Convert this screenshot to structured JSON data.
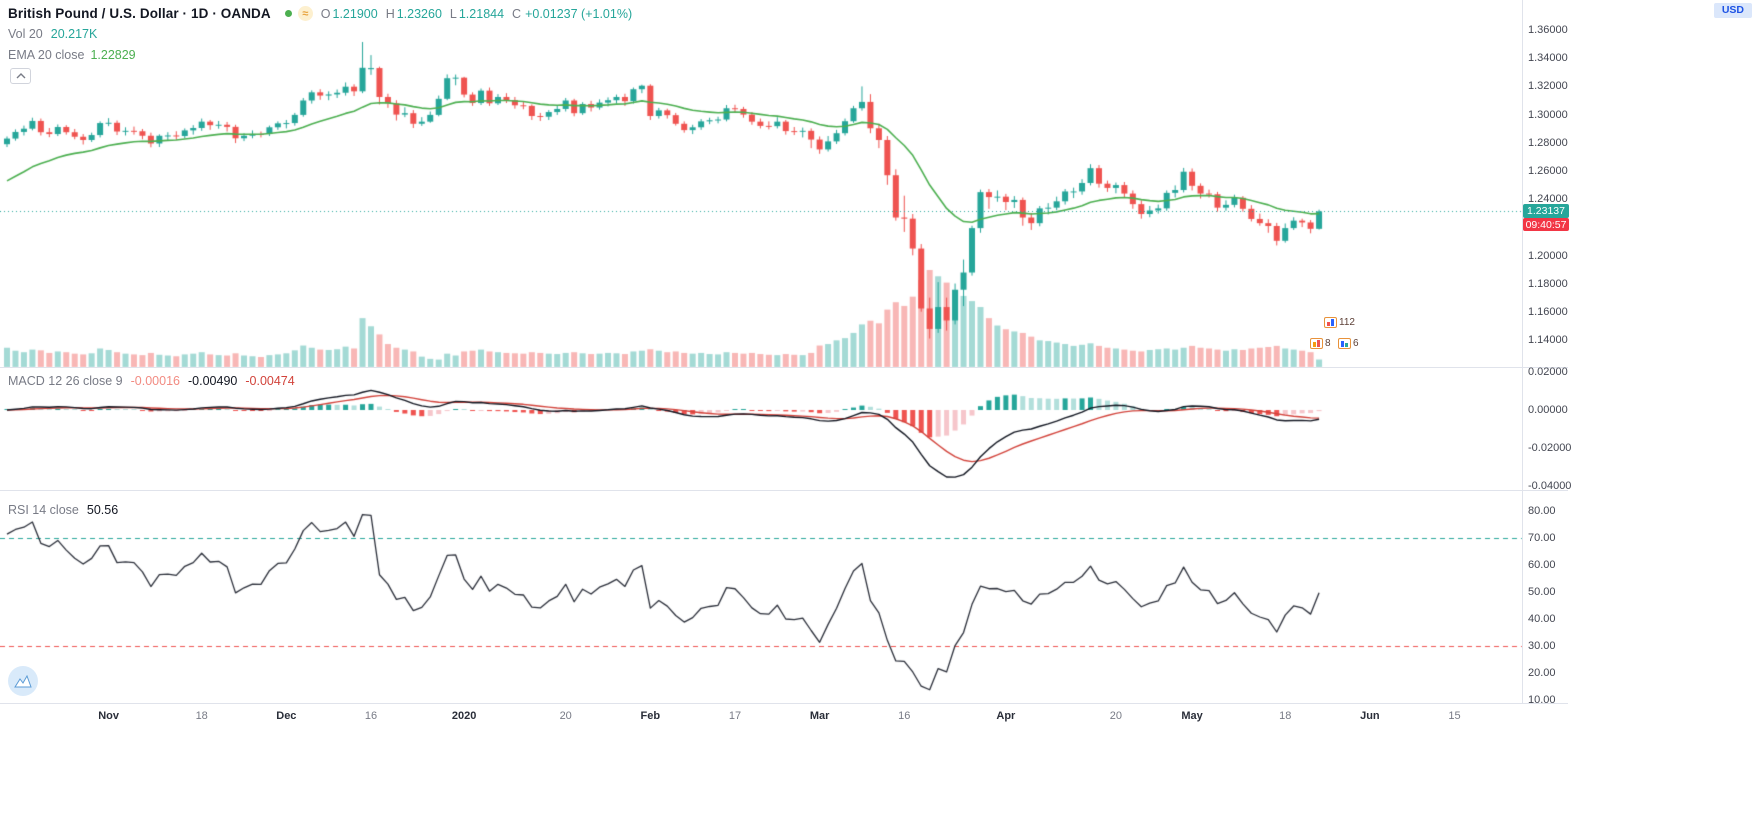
{
  "header": {
    "symbol_title": "British Pound / U.S. Dollar · 1D · OANDA",
    "delayed_icon": "≈",
    "ohlc": {
      "o_label": "O",
      "o_value": "1.21900",
      "h_label": "H",
      "h_value": "1.23260",
      "l_label": "L",
      "l_value": "1.21844",
      "c_label": "C",
      "c_value": "1.23137",
      "change_value": "+0.01237 (+1.01%)"
    },
    "vol_label": "Vol 20",
    "vol_value": "20.217K",
    "ema_label": "EMA 20 close",
    "ema_value": "1.22829"
  },
  "price_axis": {
    "currency": "USD",
    "labels": [
      "1.36000",
      "1.34000",
      "1.32000",
      "1.30000",
      "1.28000",
      "1.26000",
      "1.24000",
      "1.20000",
      "1.18000",
      "1.16000",
      "1.14000"
    ],
    "last_price": "1.23137",
    "countdown": "09:40:57"
  },
  "macd": {
    "legend_label": "MACD 12 26 close 9",
    "hist_value": "-0.00016",
    "macd_value": "-0.00490",
    "signal_value": "-0.00474",
    "axis_labels": [
      "0.02000",
      "0.00000",
      "-0.02000",
      "-0.04000"
    ]
  },
  "rsi": {
    "legend_label": "RSI 14 close",
    "value": "50.56",
    "axis_labels": [
      "80.00",
      "70.00",
      "60.00",
      "50.00",
      "40.00",
      "30.00",
      "20.00",
      "10.00"
    ]
  },
  "time_axis": {
    "labels": [
      {
        "text": "Nov",
        "index": 12,
        "major": true
      },
      {
        "text": "18",
        "index": 23,
        "major": false
      },
      {
        "text": "Dec",
        "index": 33,
        "major": true
      },
      {
        "text": "16",
        "index": 43,
        "major": false
      },
      {
        "text": "2020",
        "index": 54,
        "major": true
      },
      {
        "text": "20",
        "index": 66,
        "major": false
      },
      {
        "text": "Feb",
        "index": 76,
        "major": true
      },
      {
        "text": "17",
        "index": 86,
        "major": false
      },
      {
        "text": "Mar",
        "index": 96,
        "major": true
      },
      {
        "text": "16",
        "index": 106,
        "major": false
      },
      {
        "text": "Apr",
        "index": 118,
        "major": true
      },
      {
        "text": "20",
        "index": 131,
        "major": false
      },
      {
        "text": "May",
        "index": 140,
        "major": true
      },
      {
        "text": "18",
        "index": 151,
        "major": false
      },
      {
        "text": "Jun",
        "index": 161,
        "major": true
      },
      {
        "text": "15",
        "index": 171,
        "major": false
      }
    ]
  },
  "markers": {
    "items": [
      {
        "count": "112"
      },
      {
        "count": "8"
      },
      {
        "count": "6"
      }
    ]
  },
  "colors": {
    "up": "#26a69a",
    "down": "#ef5350",
    "volume_up": "rgba(38,166,154,0.42)",
    "volume_down": "rgba(239,83,80,0.42)",
    "ema": "#4caf50",
    "price_line": "#26a69a",
    "macd_line": "#131722",
    "signal_line": "#d2433b",
    "hist_up_grow": "#26a69a",
    "hist_up_fall": "#b2dfdb",
    "hist_dn_fall": "#ef5350",
    "hist_dn_rise": "#f6c6cb",
    "rsi_line": "#2a2e39",
    "rsi_upper": "#26a69a",
    "rsi_lower": "#ef5350",
    "badge_price_bg": "#26a69a",
    "badge_countdown_bg": "#f23645"
  },
  "chart_data": {
    "type": "candlestick",
    "symbol": "GBP/USD",
    "timeframe": "1D",
    "exchange": "OANDA",
    "date_range": {
      "start": "2019-10-16",
      "end": "2020-05-22",
      "frequency": "trading_days"
    },
    "price_axis_visible_range": [
      1.121,
      1.381
    ],
    "last_price": 1.23137,
    "candles_ohlc": [
      [
        1.279,
        1.2845,
        1.277,
        1.283
      ],
      [
        1.283,
        1.2895,
        1.2815,
        1.2877
      ],
      [
        1.2877,
        1.2922,
        1.2852,
        1.29
      ],
      [
        1.29,
        1.2978,
        1.2888,
        1.2955
      ],
      [
        1.2955,
        1.2972,
        1.2852,
        1.2875
      ],
      [
        1.2875,
        1.2905,
        1.284,
        1.2862
      ],
      [
        1.2862,
        1.293,
        1.2848,
        1.2912
      ],
      [
        1.2912,
        1.2925,
        1.2858,
        1.2875
      ],
      [
        1.2875,
        1.2898,
        1.2825,
        1.2843
      ],
      [
        1.2843,
        1.2862,
        1.2788,
        1.282
      ],
      [
        1.282,
        1.2872,
        1.2806,
        1.2855
      ],
      [
        1.2855,
        1.2952,
        1.2838,
        1.294
      ],
      [
        1.294,
        1.2975,
        1.2918,
        1.2942
      ],
      [
        1.2942,
        1.2958,
        1.2855,
        1.288
      ],
      [
        1.288,
        1.291,
        1.2852,
        1.2885
      ],
      [
        1.2885,
        1.2915,
        1.2858,
        1.2882
      ],
      [
        1.2882,
        1.2898,
        1.2825,
        1.285
      ],
      [
        1.285,
        1.2872,
        1.2768,
        1.2795
      ],
      [
        1.2795,
        1.286,
        1.277,
        1.285
      ],
      [
        1.285,
        1.2875,
        1.282,
        1.2852
      ],
      [
        1.2852,
        1.2882,
        1.2822,
        1.2848
      ],
      [
        1.2848,
        1.2902,
        1.2832,
        1.2888
      ],
      [
        1.2888,
        1.2925,
        1.2858,
        1.2905
      ],
      [
        1.2905,
        1.2972,
        1.2885,
        1.295
      ],
      [
        1.295,
        1.2962,
        1.2892,
        1.2925
      ],
      [
        1.2925,
        1.2955,
        1.29,
        1.2928
      ],
      [
        1.2928,
        1.2948,
        1.288,
        1.2913
      ],
      [
        1.2913,
        1.2928,
        1.2798,
        1.2832
      ],
      [
        1.2832,
        1.2868,
        1.2812,
        1.285
      ],
      [
        1.285,
        1.2888,
        1.2832,
        1.2863
      ],
      [
        1.2863,
        1.288,
        1.2838,
        1.2862
      ],
      [
        1.2862,
        1.2922,
        1.2848,
        1.291
      ],
      [
        1.291,
        1.2952,
        1.2892,
        1.2938
      ],
      [
        1.2938,
        1.2962,
        1.2902,
        1.294
      ],
      [
        1.294,
        1.3012,
        1.2922,
        1.2998
      ],
      [
        1.2998,
        1.3118,
        1.2985,
        1.31
      ],
      [
        1.31,
        1.3172,
        1.3078,
        1.3158
      ],
      [
        1.3158,
        1.318,
        1.3105,
        1.3135
      ],
      [
        1.3135,
        1.3165,
        1.3102,
        1.3143
      ],
      [
        1.3143,
        1.3178,
        1.3118,
        1.3155
      ],
      [
        1.3155,
        1.3228,
        1.3135,
        1.3198
      ],
      [
        1.3198,
        1.3215,
        1.3132,
        1.3165
      ],
      [
        1.3165,
        1.3515,
        1.3152,
        1.3332
      ],
      [
        1.3322,
        1.3422,
        1.3282,
        1.333
      ],
      [
        1.333,
        1.334,
        1.3072,
        1.3125
      ],
      [
        1.3125,
        1.3148,
        1.3048,
        1.308
      ],
      [
        1.308,
        1.3102,
        1.2958,
        1.3
      ],
      [
        1.3,
        1.3052,
        1.2982,
        1.301
      ],
      [
        1.301,
        1.3032,
        1.2905,
        1.2935
      ],
      [
        1.2935,
        1.2982,
        1.292,
        1.295
      ],
      [
        1.295,
        1.3022,
        1.2942,
        1.2998
      ],
      [
        1.2998,
        1.3135,
        1.2988,
        1.3112
      ],
      [
        1.3112,
        1.3285,
        1.3102,
        1.3258
      ],
      [
        1.3258,
        1.3284,
        1.3208,
        1.3262
      ],
      [
        1.3262,
        1.3268,
        1.3122,
        1.3142
      ],
      [
        1.3142,
        1.3158,
        1.3062,
        1.3082
      ],
      [
        1.3082,
        1.3185,
        1.3068,
        1.317
      ],
      [
        1.317,
        1.3192,
        1.3062,
        1.308
      ],
      [
        1.308,
        1.3145,
        1.3068,
        1.3125
      ],
      [
        1.3125,
        1.3152,
        1.3082,
        1.3103
      ],
      [
        1.3103,
        1.3125,
        1.3042,
        1.3066
      ],
      [
        1.3066,
        1.3092,
        1.3038,
        1.3062
      ],
      [
        1.3062,
        1.3072,
        1.2962,
        1.299
      ],
      [
        1.299,
        1.3012,
        1.2955,
        1.2985
      ],
      [
        1.2985,
        1.3032,
        1.2962,
        1.3018
      ],
      [
        1.3018,
        1.3062,
        1.2998,
        1.304
      ],
      [
        1.304,
        1.3118,
        1.3022,
        1.31
      ],
      [
        1.31,
        1.3112,
        1.2988,
        1.301
      ],
      [
        1.301,
        1.3088,
        1.2998,
        1.3075
      ],
      [
        1.3075,
        1.3098,
        1.3022,
        1.305
      ],
      [
        1.305,
        1.3108,
        1.3035,
        1.3085
      ],
      [
        1.3085,
        1.3122,
        1.3058,
        1.3102
      ],
      [
        1.3102,
        1.3142,
        1.3078,
        1.3125
      ],
      [
        1.3125,
        1.3148,
        1.3062,
        1.3095
      ],
      [
        1.3095,
        1.3192,
        1.3078,
        1.318
      ],
      [
        1.318,
        1.3212,
        1.3152,
        1.3205
      ],
      [
        1.3205,
        1.3215,
        1.2962,
        1.299
      ],
      [
        1.299,
        1.3048,
        1.2972,
        1.303
      ],
      [
        1.303,
        1.3042,
        1.2972,
        1.2996
      ],
      [
        1.2996,
        1.3012,
        1.2922,
        1.2935
      ],
      [
        1.2935,
        1.2952,
        1.2872,
        1.289
      ],
      [
        1.289,
        1.2928,
        1.2862,
        1.291
      ],
      [
        1.291,
        1.2968,
        1.2892,
        1.2952
      ],
      [
        1.2952,
        1.2978,
        1.2932,
        1.296
      ],
      [
        1.296,
        1.2985,
        1.2938,
        1.2965
      ],
      [
        1.2965,
        1.3068,
        1.2952,
        1.3045
      ],
      [
        1.3045,
        1.307,
        1.3012,
        1.304
      ],
      [
        1.304,
        1.3055,
        1.2978,
        1.3
      ],
      [
        1.3,
        1.3018,
        1.2928,
        1.295
      ],
      [
        1.295,
        1.2972,
        1.2902,
        1.292
      ],
      [
        1.292,
        1.2952,
        1.2895,
        1.2918
      ],
      [
        1.2918,
        1.2982,
        1.2902,
        1.295
      ],
      [
        1.295,
        1.2962,
        1.2858,
        1.2883
      ],
      [
        1.2883,
        1.2912,
        1.2855,
        1.288
      ],
      [
        1.288,
        1.2908,
        1.2838,
        1.2885
      ],
      [
        1.2885,
        1.2902,
        1.2762,
        1.2823
      ],
      [
        1.2823,
        1.2845,
        1.2722,
        1.2753
      ],
      [
        1.2753,
        1.2848,
        1.2738,
        1.281
      ],
      [
        1.281,
        1.2892,
        1.2792,
        1.2868
      ],
      [
        1.2868,
        1.2972,
        1.2852,
        1.2953
      ],
      [
        1.2953,
        1.3062,
        1.2942,
        1.3045
      ],
      [
        1.3045,
        1.32,
        1.3028,
        1.309
      ],
      [
        1.309,
        1.3145,
        1.2868,
        1.2903
      ],
      [
        1.2903,
        1.2935,
        1.2762,
        1.282
      ],
      [
        1.282,
        1.2848,
        1.2502,
        1.257
      ],
      [
        1.257,
        1.2612,
        1.2248,
        1.227
      ],
      [
        1.227,
        1.2425,
        1.2168,
        1.2262
      ],
      [
        1.2262,
        1.2295,
        1.2002,
        1.205
      ],
      [
        1.205,
        1.2082,
        1.1602,
        1.1625
      ],
      [
        1.1625,
        1.1702,
        1.1412,
        1.148
      ],
      [
        1.148,
        1.1812,
        1.1452,
        1.1635
      ],
      [
        1.1635,
        1.1702,
        1.1468,
        1.154
      ],
      [
        1.154,
        1.1802,
        1.1512,
        1.1758
      ],
      [
        1.1758,
        1.1972,
        1.1642,
        1.188
      ],
      [
        1.188,
        1.2212,
        1.1858,
        1.2195
      ],
      [
        1.2195,
        1.2468,
        1.2162,
        1.245
      ],
      [
        1.245,
        1.2472,
        1.2332,
        1.2415
      ],
      [
        1.2415,
        1.2462,
        1.2382,
        1.2418
      ],
      [
        1.2418,
        1.2438,
        1.2322,
        1.238
      ],
      [
        1.238,
        1.2422,
        1.2338,
        1.2395
      ],
      [
        1.2395,
        1.2412,
        1.2212,
        1.227
      ],
      [
        1.227,
        1.2302,
        1.2182,
        1.223
      ],
      [
        1.223,
        1.2352,
        1.2208,
        1.2335
      ],
      [
        1.2335,
        1.2372,
        1.2292,
        1.234
      ],
      [
        1.234,
        1.2418,
        1.2322,
        1.2385
      ],
      [
        1.2385,
        1.2472,
        1.2362,
        1.2455
      ],
      [
        1.2455,
        1.2482,
        1.2408,
        1.2455
      ],
      [
        1.2455,
        1.2542,
        1.2432,
        1.2515
      ],
      [
        1.2515,
        1.2648,
        1.2498,
        1.262
      ],
      [
        1.262,
        1.2642,
        1.2482,
        1.251
      ],
      [
        1.251,
        1.2532,
        1.2452,
        1.248
      ],
      [
        1.248,
        1.2518,
        1.2442,
        1.25
      ],
      [
        1.25,
        1.2522,
        1.2412,
        1.244
      ],
      [
        1.244,
        1.2462,
        1.2332,
        1.2365
      ],
      [
        1.2365,
        1.2392,
        1.2262,
        1.2295
      ],
      [
        1.2295,
        1.2352,
        1.2272,
        1.232
      ],
      [
        1.232,
        1.2362,
        1.2298,
        1.2335
      ],
      [
        1.2335,
        1.2462,
        1.2318,
        1.2445
      ],
      [
        1.2445,
        1.2498,
        1.2412,
        1.2465
      ],
      [
        1.2465,
        1.2622,
        1.2448,
        1.2595
      ],
      [
        1.2595,
        1.2618,
        1.2462,
        1.2495
      ],
      [
        1.2495,
        1.2512,
        1.2405,
        1.244
      ],
      [
        1.244,
        1.2468,
        1.2412,
        1.2435
      ],
      [
        1.2435,
        1.2452,
        1.2312,
        1.234
      ],
      [
        1.234,
        1.2392,
        1.2318,
        1.236
      ],
      [
        1.236,
        1.2432,
        1.2342,
        1.241
      ],
      [
        1.241,
        1.2422,
        1.2312,
        1.2332
      ],
      [
        1.2332,
        1.2358,
        1.2242,
        1.226
      ],
      [
        1.226,
        1.2298,
        1.2212,
        1.223
      ],
      [
        1.223,
        1.2258,
        1.2162,
        1.221
      ],
      [
        1.221,
        1.2232,
        1.2072,
        1.2105
      ],
      [
        1.2105,
        1.2228,
        1.2092,
        1.2195
      ],
      [
        1.2195,
        1.2272,
        1.2182,
        1.2248
      ],
      [
        1.2248,
        1.2262,
        1.2202,
        1.2235
      ],
      [
        1.2235,
        1.2252,
        1.2158,
        1.219
      ],
      [
        1.219,
        1.2326,
        1.21844,
        1.23137
      ]
    ],
    "volume_k": [
      52,
      44,
      40,
      47,
      45,
      38,
      42,
      40,
      36,
      34,
      37,
      50,
      46,
      40,
      36,
      34,
      32,
      38,
      33,
      31,
      29,
      34,
      36,
      40,
      34,
      32,
      31,
      37,
      31,
      29,
      27,
      32,
      34,
      37,
      45,
      58,
      52,
      47,
      46,
      48,
      55,
      50,
      132,
      110,
      88,
      62,
      52,
      47,
      42,
      28,
      22,
      20,
      36,
      31,
      42,
      44,
      47,
      42,
      40,
      38,
      37,
      36,
      40,
      38,
      36,
      35,
      38,
      40,
      37,
      35,
      36,
      38,
      37,
      35,
      42,
      44,
      48,
      44,
      40,
      42,
      38,
      36,
      38,
      35,
      34,
      40,
      38,
      36,
      38,
      35,
      33,
      32,
      35,
      33,
      32,
      38,
      58,
      62,
      72,
      78,
      92,
      115,
      125,
      118,
      155,
      175,
      165,
      190,
      235,
      262,
      245,
      228,
      208,
      192,
      178,
      162,
      132,
      112,
      102,
      96,
      92,
      82,
      72,
      70,
      66,
      62,
      57,
      60,
      64,
      57,
      52,
      50,
      47,
      44,
      42,
      46,
      48,
      50,
      47,
      52,
      57,
      52,
      50,
      47,
      44,
      48,
      46,
      50,
      52,
      54,
      57,
      50,
      47,
      44,
      40,
      20.217
    ],
    "overlays": {
      "ema": {
        "length": 20,
        "seed": 1.253,
        "last_value": 1.22829
      }
    },
    "panes": [
      {
        "name": "macd",
        "type": "line",
        "params": {
          "fast": 12,
          "slow": 26,
          "source": "close",
          "signal": 9
        },
        "last_values": {
          "hist": -0.00016,
          "macd": -0.0049,
          "signal": -0.00474
        },
        "axis_range": [
          -0.042,
          0.022
        ]
      },
      {
        "name": "rsi",
        "type": "line",
        "params": {
          "length": 14,
          "source": "close"
        },
        "seed": {
          "avg_gain": 0.004,
          "avg_loss": 0.0016
        },
        "last_value": 50.56,
        "bands": [
          70,
          30
        ],
        "axis_range": [
          9,
          87
        ]
      }
    ]
  }
}
